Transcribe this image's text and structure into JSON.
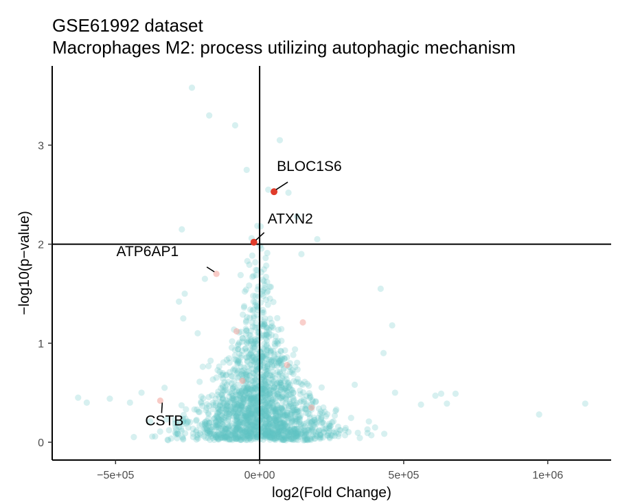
{
  "chart_data": {
    "type": "scatter",
    "title": "GSE61992 dataset",
    "subtitle": "Macrophages M2: process utilizing autophagic mechanism",
    "xlabel": "log2(Fold Change)",
    "ylabel": "−log10(p−value)",
    "xlim": [
      -720000,
      1220000
    ],
    "ylim": [
      -0.18,
      3.8
    ],
    "x_ticks": [
      {
        "value": -500000,
        "label": "−5e+05"
      },
      {
        "value": 0,
        "label": "0e+00"
      },
      {
        "value": 500000,
        "label": "5e+05"
      },
      {
        "value": 1000000,
        "label": "1e+06"
      }
    ],
    "y_ticks": [
      {
        "value": 0,
        "label": "0"
      },
      {
        "value": 1,
        "label": "1"
      },
      {
        "value": 2,
        "label": "2"
      },
      {
        "value": 3,
        "label": "3"
      }
    ],
    "reference_lines": {
      "x": 0,
      "y": 2
    },
    "grid": false,
    "legend": "none",
    "colors": {
      "background_points": "#5fc4c4",
      "highlight": "#e03c2b",
      "faded_highlight": "#f4a8a0",
      "lines": "#000000"
    },
    "labeled_genes": [
      {
        "gene": "BLOC1S6",
        "x": 50000,
        "y": 2.53,
        "significant": true
      },
      {
        "gene": "ATXN2",
        "x": -20000,
        "y": 2.02,
        "significant": true
      },
      {
        "gene": "ATP6AP1",
        "x": -150000,
        "y": 1.7,
        "significant": false
      },
      {
        "gene": "CSTB",
        "x": -345000,
        "y": 0.42,
        "significant": false
      }
    ],
    "other_highlighted": [
      {
        "x": 150000,
        "y": 1.21
      },
      {
        "x": -80000,
        "y": 1.12
      },
      {
        "x": 95000,
        "y": 0.78
      },
      {
        "x": -60000,
        "y": 0.62
      },
      {
        "x": 180000,
        "y": 0.35
      }
    ],
    "outlier_points": [
      {
        "x": -235000,
        "y": 3.58
      },
      {
        "x": -175000,
        "y": 3.3
      },
      {
        "x": -85000,
        "y": 3.2
      },
      {
        "x": 70000,
        "y": 3.05
      },
      {
        "x": -45000,
        "y": 2.75
      },
      {
        "x": 30000,
        "y": 2.55
      },
      {
        "x": 100000,
        "y": 2.52
      },
      {
        "x": -270000,
        "y": 2.15
      },
      {
        "x": 200000,
        "y": 2.05
      },
      {
        "x": 130000,
        "y": 2.28
      },
      {
        "x": 145000,
        "y": 1.9
      },
      {
        "x": 420000,
        "y": 1.55
      },
      {
        "x": 460000,
        "y": 1.18
      },
      {
        "x": 430000,
        "y": 0.9
      },
      {
        "x": 330000,
        "y": 0.58
      },
      {
        "x": 470000,
        "y": 0.5
      },
      {
        "x": 560000,
        "y": 0.38
      },
      {
        "x": 630000,
        "y": 0.49
      },
      {
        "x": 610000,
        "y": 0.47
      },
      {
        "x": 680000,
        "y": 0.49
      },
      {
        "x": 650000,
        "y": 0.39
      },
      {
        "x": 970000,
        "y": 0.28
      },
      {
        "x": 1130000,
        "y": 0.39
      },
      {
        "x": -630000,
        "y": 0.45
      },
      {
        "x": -600000,
        "y": 0.4
      },
      {
        "x": -520000,
        "y": 0.44
      },
      {
        "x": -450000,
        "y": 0.4
      },
      {
        "x": -410000,
        "y": 0.5
      },
      {
        "x": -380000,
        "y": 0.21
      },
      {
        "x": -330000,
        "y": 0.55
      },
      {
        "x": -260000,
        "y": 1.5
      },
      {
        "x": -265000,
        "y": 1.25
      },
      {
        "x": -280000,
        "y": 1.42
      },
      {
        "x": -215000,
        "y": 1.1
      },
      {
        "x": -190000,
        "y": 1.65
      }
    ],
    "cloud_points_estimated_count": 1800
  }
}
